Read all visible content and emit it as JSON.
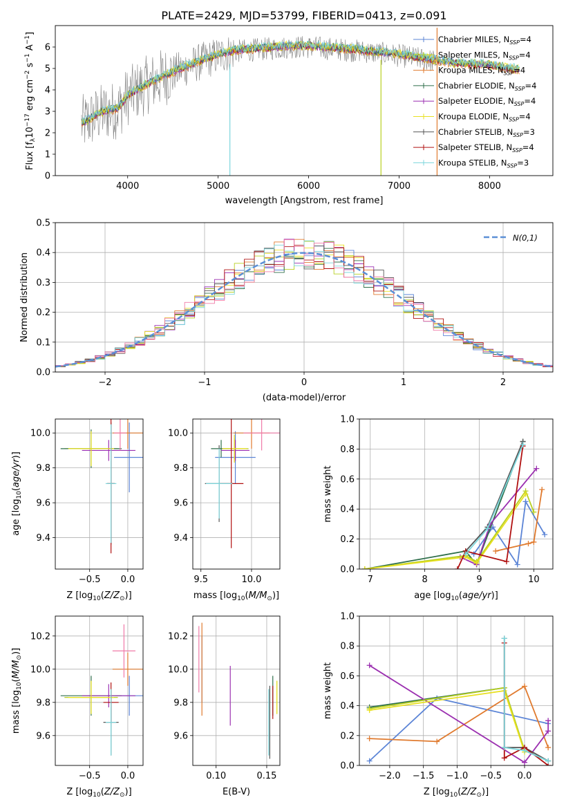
{
  "title": "PLATE=2429, MJD=53799, FIBERID=0413, z=0.091",
  "colors": {
    "chabrier_miles": "#5b84d6",
    "salpeter_miles": "#b8d020",
    "kroupa_miles": "#e07a2e",
    "chabrier_elodie": "#2e6e4a",
    "salpeter_elodie": "#9b2fb0",
    "kroupa_elodie": "#e8e020",
    "chabrier_stelib": "#555555",
    "salpeter_stelib": "#b01010",
    "kroupa_stelib": "#7cd6dc",
    "gauss": "#5b8fd6",
    "pink": "#f07aa8"
  },
  "legend": [
    {
      "label": "Chabrier MILES, N_SSP=4",
      "color": "#5b84d6"
    },
    {
      "label": "Salpeter MILES, N_SSP=4",
      "color": "#b8d020"
    },
    {
      "label": "Kroupa MILES, N_SSP=4",
      "color": "#e07a2e"
    },
    {
      "label": "Chabrier ELODIE, N_SSP=4",
      "color": "#2e6e4a"
    },
    {
      "label": "Salpeter ELODIE, N_SSP=4",
      "color": "#9b2fb0"
    },
    {
      "label": "Kroupa ELODIE, N_SSP=4",
      "color": "#e8e020"
    },
    {
      "label": "Chabrier STELIB, N_SSP=3",
      "color": "#555555"
    },
    {
      "label": "Salpeter STELIB, N_SSP=4",
      "color": "#b01010"
    },
    {
      "label": "Kroupa STELIB, N_SSP=3",
      "color": "#7cd6dc"
    }
  ],
  "chart_data": [
    {
      "id": "spectrum",
      "type": "line",
      "xlabel": "wavelength [Angstrom, rest frame]",
      "ylabel": "Flux [f_λ 10^-17 erg cm^-2 s^-1 A^-1]",
      "xlim": [
        3200,
        8700
      ],
      "ylim": [
        0,
        7
      ],
      "xticks": [
        4000,
        5000,
        6000,
        7000,
        8000
      ],
      "yticks": [
        0,
        1,
        2,
        3,
        4,
        5,
        6
      ],
      "grid": false,
      "legend_position": "top-right",
      "continuum": {
        "x": [
          3500,
          3700,
          3900,
          4000,
          4200,
          4500,
          4800,
          5000,
          5200,
          5500,
          5800,
          6000,
          6300,
          6600,
          7000,
          7300,
          7600,
          8000,
          8300
        ],
        "y": [
          2.4,
          2.9,
          3.1,
          3.7,
          4.2,
          4.8,
          5.3,
          5.6,
          5.8,
          5.9,
          6.0,
          6.0,
          5.9,
          5.8,
          5.6,
          5.4,
          5.2,
          5.1,
          4.9
        ]
      }
    },
    {
      "id": "residuals",
      "type": "histogram",
      "xlabel": "(data-model)/error",
      "ylabel": "Normed distribution",
      "xlim": [
        -2.5,
        2.5
      ],
      "ylim": [
        0,
        0.5
      ],
      "xticks": [
        -2,
        -1,
        0,
        1,
        2
      ],
      "yticks": [
        0.0,
        0.1,
        0.2,
        0.3,
        0.4,
        0.5
      ],
      "grid": true,
      "legend_position": "top-right",
      "gauss_label": "N(0,1)",
      "bin_width": 0.1,
      "bins_start": -2.5
    },
    {
      "id": "z_age",
      "type": "errorbar",
      "xlabel": "Z [log10(Z/Z_sun)]",
      "ylabel": "age [log10(age/yr)]",
      "xlim": [
        -0.95,
        0.2
      ],
      "ylim": [
        9.22,
        10.08
      ],
      "xticks": [
        -0.5,
        0.0
      ],
      "yticks": [
        9.4,
        9.6,
        9.8,
        10.0
      ],
      "grid": true,
      "points": [
        {
          "x": 0.02,
          "y": 9.86,
          "xe": 0.2,
          "ye": 0.2,
          "color": "#5b84d6"
        },
        {
          "x": -0.48,
          "y": 9.91,
          "xe": 0.35,
          "ye": 0.1,
          "color": "#b8d020"
        },
        {
          "x": 0.0,
          "y": 10.0,
          "xe": 0.2,
          "ye": 0.09,
          "color": "#e07a2e"
        },
        {
          "x": -0.48,
          "y": 9.91,
          "xe": 0.4,
          "ye": 0.11,
          "color": "#2e6e4a"
        },
        {
          "x": -0.25,
          "y": 9.9,
          "xe": 0.35,
          "ye": 0.06,
          "color": "#9b2fb0"
        },
        {
          "x": -0.48,
          "y": 9.91,
          "xe": 0.3,
          "ye": 0.1,
          "color": "#e8e020"
        },
        {
          "x": -0.22,
          "y": 9.71,
          "xe": 0.05,
          "ye": 0.35,
          "color": "#555555"
        },
        {
          "x": -0.22,
          "y": 9.71,
          "xe": 0.05,
          "ye": 0.4,
          "color": "#b01010"
        },
        {
          "x": -0.22,
          "y": 9.71,
          "xe": 0.07,
          "ye": 0.34,
          "color": "#7cd6dc"
        },
        {
          "x": -0.1,
          "y": 10.0,
          "xe": 0.08,
          "ye": 0.1,
          "color": "#f07aa8"
        }
      ]
    },
    {
      "id": "mass_age",
      "type": "errorbar",
      "xlabel": "mass [log10(M/M_sun)]",
      "ylabel": "",
      "xlim": [
        9.42,
        10.28
      ],
      "ylim": [
        9.22,
        10.08
      ],
      "xticks": [
        9.5,
        10.0
      ],
      "yticks": [
        9.4,
        9.6,
        9.8,
        10.0
      ],
      "grid": true,
      "points": [
        {
          "x": 9.84,
          "y": 9.86,
          "xe": 0.2,
          "ye": 0.15,
          "color": "#5b84d6"
        },
        {
          "x": 9.83,
          "y": 9.91,
          "xe": 0.14,
          "ye": 0.06,
          "color": "#b8d020"
        },
        {
          "x": 10.0,
          "y": 10.0,
          "xe": 0.18,
          "ye": 0.09,
          "color": "#e07a2e"
        },
        {
          "x": 9.7,
          "y": 9.91,
          "xe": 0.1,
          "ye": 0.05,
          "color": "#2e6e4a"
        },
        {
          "x": 9.84,
          "y": 9.9,
          "xe": 0.14,
          "ye": 0.06,
          "color": "#9b2fb0"
        },
        {
          "x": 9.83,
          "y": 9.91,
          "xe": 0.12,
          "ye": 0.08,
          "color": "#e8e020"
        },
        {
          "x": 9.68,
          "y": 9.71,
          "xe": 0.14,
          "ye": 0.22,
          "color": "#555555"
        },
        {
          "x": 9.8,
          "y": 9.71,
          "xe": 0.12,
          "ye": 0.37,
          "color": "#b01010"
        },
        {
          "x": 9.68,
          "y": 9.71,
          "xe": 0.13,
          "ye": 0.2,
          "color": "#7cd6dc"
        },
        {
          "x": 10.1,
          "y": 10.0,
          "xe": 0.18,
          "ye": 0.1,
          "color": "#f07aa8"
        }
      ]
    },
    {
      "id": "age_weight",
      "type": "line",
      "xlabel": "age [log10(age/yr)]",
      "ylabel": "mass weight",
      "xlim": [
        6.8,
        10.35
      ],
      "ylim": [
        0,
        1
      ],
      "xticks": [
        7,
        8,
        9,
        10
      ],
      "yticks": [
        0.0,
        0.2,
        0.4,
        0.6,
        0.8,
        1.0
      ],
      "grid": true,
      "series": [
        {
          "color": "#5b84d6",
          "x": [
            8.9,
            9.25,
            9.7,
            9.85,
            10.2
          ],
          "y": [
            0.1,
            0.28,
            0.03,
            0.45,
            0.23
          ]
        },
        {
          "color": "#e07a2e",
          "x": [
            9.3,
            9.9,
            10.0,
            10.15
          ],
          "y": [
            0.12,
            0.17,
            0.18,
            0.53
          ]
        },
        {
          "color": "#2e6e4a",
          "x": [
            6.9,
            8.75,
            8.95,
            9.8
          ],
          "y": [
            0.0,
            0.12,
            0.03,
            0.85
          ]
        },
        {
          "color": "#9b2fb0",
          "x": [
            8.65,
            8.95,
            9.2,
            10.05
          ],
          "y": [
            0.08,
            0.03,
            0.3,
            0.67
          ]
        },
        {
          "color": "#b8d020",
          "x": [
            6.9,
            8.75,
            8.95,
            9.85,
            10.0
          ],
          "y": [
            0.0,
            0.09,
            0.05,
            0.52,
            0.38
          ]
        },
        {
          "color": "#e8e020",
          "x": [
            6.9,
            8.75,
            8.95,
            9.85
          ],
          "y": [
            0.0,
            0.08,
            0.04,
            0.5
          ]
        },
        {
          "color": "#555555",
          "x": [
            8.75,
            9.15,
            9.8
          ],
          "y": [
            0.12,
            0.28,
            0.85
          ]
        },
        {
          "color": "#b01010",
          "x": [
            8.6,
            8.75,
            9.5,
            9.8
          ],
          "y": [
            0.0,
            0.12,
            0.05,
            0.82
          ]
        },
        {
          "color": "#7cd6dc",
          "x": [
            8.75,
            9.15,
            9.8
          ],
          "y": [
            0.1,
            0.27,
            0.83
          ]
        }
      ]
    },
    {
      "id": "z_mass",
      "type": "errorbar",
      "xlabel": "Z [log10(Z/Z_sun)]",
      "ylabel": "mass [log10(M/M_sun)]",
      "xlim": [
        -0.95,
        0.2
      ],
      "ylim": [
        9.42,
        10.32
      ],
      "xticks": [
        -0.5,
        0.0
      ],
      "yticks": [
        9.6,
        9.8,
        10.0,
        10.2
      ],
      "grid": true,
      "points": [
        {
          "x": 0.02,
          "y": 9.84,
          "xe": 0.18,
          "ye": 0.12,
          "color": "#5b84d6"
        },
        {
          "x": -0.48,
          "y": 9.83,
          "xe": 0.35,
          "ye": 0.1,
          "color": "#b8d020"
        },
        {
          "x": 0.0,
          "y": 10.0,
          "xe": 0.2,
          "ye": 0.1,
          "color": "#e07a2e"
        },
        {
          "x": -0.48,
          "y": 9.84,
          "xe": 0.4,
          "ye": 0.12,
          "color": "#2e6e4a"
        },
        {
          "x": -0.25,
          "y": 9.84,
          "xe": 0.35,
          "ye": 0.07,
          "color": "#9b2fb0"
        },
        {
          "x": -0.48,
          "y": 9.83,
          "xe": 0.3,
          "ye": 0.1,
          "color": "#e8e020"
        },
        {
          "x": -0.22,
          "y": 9.68,
          "xe": 0.1,
          "ye": 0.2,
          "color": "#555555"
        },
        {
          "x": -0.22,
          "y": 9.8,
          "xe": 0.1,
          "ye": 0.12,
          "color": "#b01010"
        },
        {
          "x": -0.22,
          "y": 9.68,
          "xe": 0.07,
          "ye": 0.2,
          "color": "#7cd6dc"
        },
        {
          "x": -0.05,
          "y": 10.11,
          "xe": 0.15,
          "ye": 0.16,
          "color": "#f07aa8"
        }
      ]
    },
    {
      "id": "ebv_mass",
      "type": "errorbar",
      "xlabel": "E(B-V)",
      "ylabel": "",
      "xlim": [
        0.077,
        0.163
      ],
      "ylim": [
        9.42,
        10.32
      ],
      "xticks": [
        0.1,
        0.15
      ],
      "yticks": [
        9.6,
        9.8,
        10.0,
        10.2
      ],
      "grid": true,
      "points": [
        {
          "x": 0.086,
          "y": 10.0,
          "xe": 0,
          "ye": 0.2,
          "color": "#5b84d6"
        },
        {
          "x": 0.16,
          "y": 9.83,
          "xe": 0,
          "ye": 0.1,
          "color": "#b8d020"
        },
        {
          "x": 0.086,
          "y": 10.0,
          "xe": 0,
          "ye": 0.28,
          "color": "#e07a2e"
        },
        {
          "x": 0.156,
          "y": 9.84,
          "xe": 0,
          "ye": 0.12,
          "color": "#2e6e4a"
        },
        {
          "x": 0.114,
          "y": 9.84,
          "xe": 0,
          "ye": 0.18,
          "color": "#9b2fb0"
        },
        {
          "x": 0.16,
          "y": 9.83,
          "xe": 0,
          "ye": 0.1,
          "color": "#e8e020"
        },
        {
          "x": 0.153,
          "y": 9.68,
          "xe": 0,
          "ye": 0.22,
          "color": "#555555"
        },
        {
          "x": 0.156,
          "y": 9.8,
          "xe": 0,
          "ye": 0.1,
          "color": "#b01010"
        },
        {
          "x": 0.152,
          "y": 9.68,
          "xe": 0,
          "ye": 0.2,
          "color": "#7cd6dc"
        },
        {
          "x": 0.083,
          "y": 10.06,
          "xe": 0,
          "ye": 0.2,
          "color": "#f07aa8"
        }
      ]
    },
    {
      "id": "z_weight",
      "type": "line",
      "xlabel": "Z [log10(Z/Z_sun)]",
      "ylabel": "mass weight",
      "xlim": [
        -2.45,
        0.42
      ],
      "ylim": [
        0,
        1
      ],
      "xticks": [
        -2.0,
        -1.5,
        -1.0,
        -0.5,
        0.0
      ],
      "yticks": [
        0.0,
        0.2,
        0.4,
        0.6,
        0.8,
        1.0
      ],
      "grid": true,
      "series": [
        {
          "color": "#5b84d6",
          "x": [
            -2.3,
            -1.3,
            0.35
          ],
          "y": [
            0.03,
            0.45,
            0.28
          ]
        },
        {
          "color": "#e07a2e",
          "x": [
            -2.3,
            -1.3,
            0.0,
            0.35
          ],
          "y": [
            0.18,
            0.16,
            0.53,
            0.12
          ]
        },
        {
          "color": "#2e6e4a",
          "x": [
            -2.3,
            -0.3,
            0.0,
            0.35
          ],
          "y": [
            0.39,
            0.52,
            0.1,
            0.03
          ]
        },
        {
          "color": "#9b2fb0",
          "x": [
            -2.3,
            0.0,
            0.35,
            0.35
          ],
          "y": [
            0.67,
            0.02,
            0.23,
            0.3
          ]
        },
        {
          "color": "#b8d020",
          "x": [
            -2.3,
            -0.3,
            0.0
          ],
          "y": [
            0.38,
            0.52,
            0.1
          ]
        },
        {
          "color": "#e8e020",
          "x": [
            -2.3,
            -0.3,
            0.0
          ],
          "y": [
            0.37,
            0.5,
            0.09
          ]
        },
        {
          "color": "#555555",
          "x": [
            -0.3,
            -0.3,
            0.0,
            0.35
          ],
          "y": [
            0.85,
            0.12,
            0.12,
            0.03
          ]
        },
        {
          "color": "#b01010",
          "x": [
            -0.3,
            -0.3,
            0.0,
            0.35
          ],
          "y": [
            0.82,
            0.05,
            0.12,
            0.0
          ]
        },
        {
          "color": "#7cd6dc",
          "x": [
            -0.3,
            -0.3,
            0.0,
            0.35
          ],
          "y": [
            0.85,
            0.12,
            0.1,
            0.03
          ]
        }
      ]
    }
  ]
}
